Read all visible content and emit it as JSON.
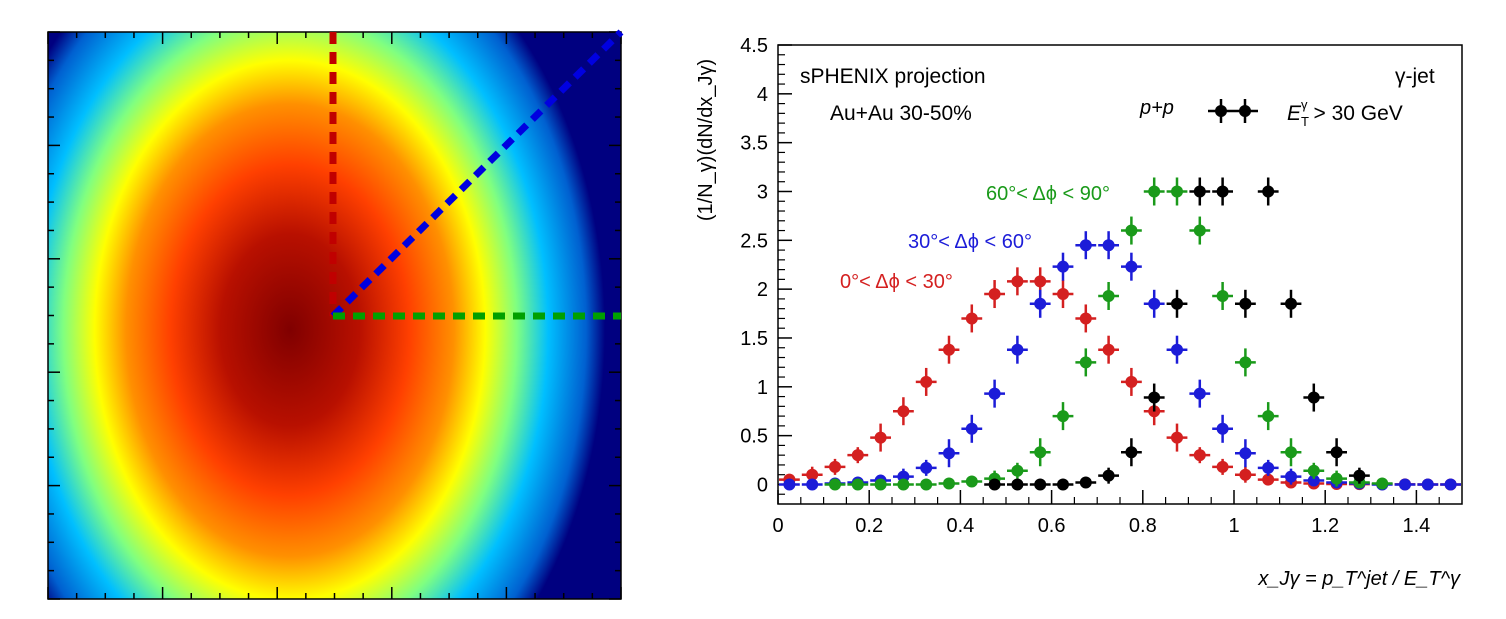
{
  "heatmap": {
    "type": "heatmap",
    "colormap": [
      "#000080",
      "#00bfff",
      "#ffff00",
      "#ff4000",
      "#800000"
    ],
    "overlay_lines": [
      {
        "name": "vertical",
        "color": "#c00000"
      },
      {
        "name": "diagonal",
        "color": "#0000e0"
      },
      {
        "name": "horizontal",
        "color": "#00a000"
      }
    ]
  },
  "chart_data": {
    "type": "scatter",
    "xlabel": "x_Jγ = p_T^jet / E_T^γ",
    "ylabel": "(1/N_γ)(dN/dx_Jγ)",
    "xlim": [
      0,
      1.5
    ],
    "ylim": [
      -0.2,
      4.5
    ],
    "x_ticks": [
      "0",
      "0.2",
      "0.4",
      "0.6",
      "0.8",
      "1",
      "1.2",
      "1.4"
    ],
    "y_ticks": [
      "0",
      "0.5",
      "1",
      "1.5",
      "2",
      "2.5",
      "3",
      "3.5",
      "4",
      "4.5"
    ],
    "grid": false,
    "annotations": {
      "experiment": "sPHENIX projection",
      "system": "Au+Au 30-50%",
      "channel": "γ-jet",
      "cut_et": "E",
      "cut_sub": "T",
      "cut_sup": "γ",
      "cut_rest": "> 30 GeV"
    },
    "legend": {
      "label": "p+p",
      "placement": "top-right"
    },
    "series": [
      {
        "name": "0°< Δϕ < 30°",
        "color": "#d42020",
        "x": [
          0.025,
          0.075,
          0.125,
          0.175,
          0.225,
          0.275,
          0.325,
          0.375,
          0.425,
          0.475,
          0.525,
          0.575,
          0.625,
          0.675,
          0.725,
          0.775,
          0.825,
          0.875,
          0.925,
          0.975,
          1.025,
          1.075,
          1.125,
          1.175,
          1.225,
          1.275,
          1.325,
          1.375,
          1.425,
          1.475
        ],
        "y": [
          0.05,
          0.1,
          0.18,
          0.3,
          0.48,
          0.75,
          1.05,
          1.38,
          1.7,
          1.95,
          2.08,
          2.08,
          1.95,
          1.7,
          1.38,
          1.05,
          0.75,
          0.48,
          0.3,
          0.18,
          0.1,
          0.05,
          0.02,
          0.01,
          0.005,
          0.003,
          0.002,
          0.001,
          0.0,
          0.0
        ]
      },
      {
        "name": "30°< Δϕ < 60°",
        "color": "#1c1cd8",
        "x": [
          0.025,
          0.075,
          0.125,
          0.175,
          0.225,
          0.275,
          0.325,
          0.375,
          0.425,
          0.475,
          0.525,
          0.575,
          0.625,
          0.675,
          0.725,
          0.775,
          0.825,
          0.875,
          0.925,
          0.975,
          1.025,
          1.075,
          1.125,
          1.175,
          1.225,
          1.275,
          1.325,
          1.375,
          1.425,
          1.475
        ],
        "y": [
          0.0,
          0.0,
          0.01,
          0.02,
          0.04,
          0.08,
          0.17,
          0.32,
          0.57,
          0.93,
          1.38,
          1.85,
          2.23,
          2.45,
          2.45,
          2.23,
          1.85,
          1.38,
          0.93,
          0.57,
          0.32,
          0.17,
          0.08,
          0.04,
          0.02,
          0.01,
          0.0,
          0.0,
          0.0,
          0.0
        ]
      },
      {
        "name": "60°< Δϕ < 90°",
        "color": "#1a9a1a",
        "x": [
          0.125,
          0.175,
          0.225,
          0.275,
          0.325,
          0.375,
          0.425,
          0.475,
          0.525,
          0.575,
          0.625,
          0.675,
          0.725,
          0.775,
          0.825,
          0.875,
          0.925,
          0.975,
          1.025,
          1.075,
          1.125,
          1.175,
          1.225,
          1.275,
          1.325
        ],
        "y": [
          0.0,
          0.0,
          0.0,
          0.0,
          0.0,
          0.01,
          0.03,
          0.06,
          0.14,
          0.33,
          0.7,
          1.25,
          1.93,
          2.6,
          3.0,
          3.0,
          2.6,
          1.93,
          1.25,
          0.7,
          0.33,
          0.14,
          0.06,
          0.02,
          0.01
        ]
      },
      {
        "name": "p+p",
        "color": "#000000",
        "x": [
          0.475,
          0.525,
          0.575,
          0.625,
          0.675,
          0.725,
          0.775,
          0.825,
          0.875,
          0.925,
          0.975,
          1.025,
          1.075,
          1.125,
          1.175,
          1.225,
          1.275
        ],
        "y": [
          0.0,
          0.0,
          0.0,
          0.0,
          0.02,
          0.09,
          0.33,
          0.89,
          1.85,
          3.0,
          3.0,
          1.85,
          3.0,
          1.85,
          0.89,
          0.33,
          0.09
        ]
      }
    ],
    "series_labels": [
      "0°< Δϕ < 30°",
      "30°< Δϕ < 60°",
      "60°< Δϕ < 90°"
    ]
  }
}
